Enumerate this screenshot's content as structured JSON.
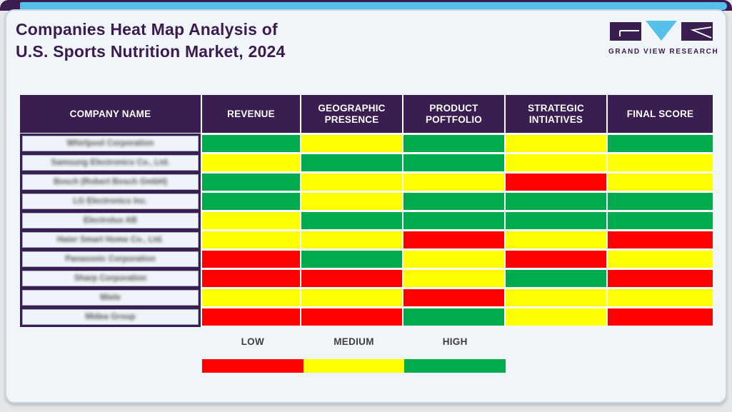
{
  "header": {
    "title_line1": "Companies Heat Map Analysis of",
    "title_line2": "U.S. Sports Nutrition Market, 2024",
    "logo_text": "GRAND VIEW RESEARCH"
  },
  "table": {
    "columns": [
      "COMPANY NAME",
      "REVENUE",
      "GEOGRAPHIC PRESENCE",
      "PRODUCT POFTFOLIO",
      "STRATEGIC INTIATIVES",
      "FINAL SCORE"
    ],
    "rows": [
      {
        "company": "Whirlpool Corporation",
        "scores": [
          "high",
          "medium",
          "high",
          "medium",
          "high"
        ]
      },
      {
        "company": "Samsung Electronics Co., Ltd.",
        "scores": [
          "medium",
          "high",
          "high",
          "medium",
          "medium"
        ]
      },
      {
        "company": "Bosch (Robert Bosch GmbH)",
        "scores": [
          "high",
          "medium",
          "medium",
          "low",
          "medium"
        ]
      },
      {
        "company": "LG Electronics Inc.",
        "scores": [
          "high",
          "medium",
          "high",
          "high",
          "high"
        ]
      },
      {
        "company": "Electrolux AB",
        "scores": [
          "medium",
          "high",
          "high",
          "high",
          "high"
        ]
      },
      {
        "company": "Haier Smart Home Co., Ltd.",
        "scores": [
          "medium",
          "medium",
          "low",
          "medium",
          "low"
        ]
      },
      {
        "company": "Panasonic Corporation",
        "scores": [
          "low",
          "high",
          "medium",
          "low",
          "medium"
        ]
      },
      {
        "company": "Sharp Corporation",
        "scores": [
          "low",
          "low",
          "medium",
          "high",
          "low"
        ]
      },
      {
        "company": "Miele",
        "scores": [
          "medium",
          "medium",
          "low",
          "medium",
          "medium"
        ]
      },
      {
        "company": "Midea Group",
        "scores": [
          "low",
          "low",
          "high",
          "medium",
          "low"
        ]
      }
    ]
  },
  "legend": {
    "items": [
      {
        "label": "LOW",
        "color": "#ff0000"
      },
      {
        "label": "MEDIUM",
        "color": "#ffff00"
      },
      {
        "label": "HIGH",
        "color": "#00ab4e"
      }
    ]
  },
  "colors": {
    "low": "#ff0000",
    "medium": "#ffff00",
    "high": "#00ab4e",
    "brand_purple": "#3a1d51",
    "accent_blue": "#57c0e9"
  },
  "chart_data": {
    "type": "heatmap",
    "title": "Companies Heat Map Analysis of U.S. Sports Nutrition Market, 2024",
    "columns": [
      "Revenue",
      "Geographic Presence",
      "Product Poftfolio",
      "Strategic Intiatives",
      "Final Score"
    ],
    "rows": [
      "Whirlpool Corporation",
      "Samsung Electronics Co., Ltd.",
      "Bosch (Robert Bosch GmbH)",
      "LG Electronics Inc.",
      "Electrolux AB",
      "Haier Smart Home Co., Ltd.",
      "Panasonic Corporation",
      "Sharp Corporation",
      "Miele",
      "Midea Group"
    ],
    "values": [
      [
        "high",
        "medium",
        "high",
        "medium",
        "high"
      ],
      [
        "medium",
        "high",
        "high",
        "medium",
        "medium"
      ],
      [
        "high",
        "medium",
        "medium",
        "low",
        "medium"
      ],
      [
        "high",
        "medium",
        "high",
        "high",
        "high"
      ],
      [
        "medium",
        "high",
        "high",
        "high",
        "high"
      ],
      [
        "medium",
        "medium",
        "low",
        "medium",
        "low"
      ],
      [
        "low",
        "high",
        "medium",
        "low",
        "medium"
      ],
      [
        "low",
        "low",
        "medium",
        "high",
        "low"
      ],
      [
        "medium",
        "medium",
        "low",
        "medium",
        "medium"
      ],
      [
        "low",
        "low",
        "high",
        "medium",
        "low"
      ]
    ],
    "scale": {
      "low": "#ff0000",
      "medium": "#ffff00",
      "high": "#00ab4e"
    },
    "legend_labels": [
      "LOW",
      "MEDIUM",
      "HIGH"
    ],
    "legend_position": "bottom"
  }
}
